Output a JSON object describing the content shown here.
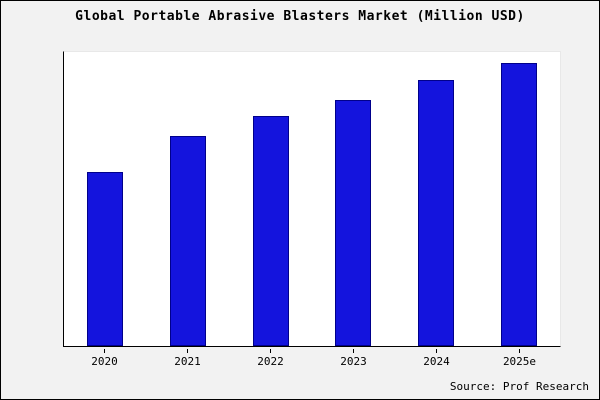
{
  "chart_data": {
    "type": "bar",
    "title": "Global Portable Abrasive Blasters Market (Million USD)",
    "categories": [
      "2020",
      "2021",
      "2022",
      "2023",
      "2024",
      "2025e"
    ],
    "values": [
      62,
      75,
      82,
      88,
      95,
      101
    ],
    "xlabel": "",
    "ylabel": "",
    "ylim": [
      0,
      105
    ],
    "grid": false,
    "legend_position": "none",
    "bar_color": "#1414dd",
    "bar_edge_color": "#00008b",
    "source": "Source: Prof Research"
  }
}
